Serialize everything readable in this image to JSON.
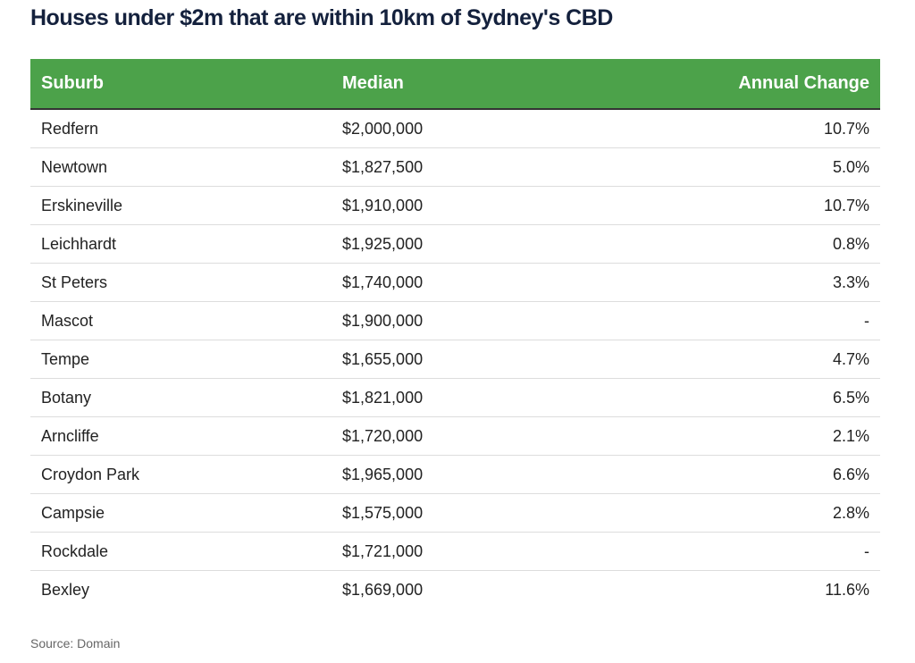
{
  "title": "Houses under $2m that are within 10km of Sydney's CBD",
  "table": {
    "header": [
      "Suburb",
      "Median",
      "Annual Change"
    ],
    "rows": [
      [
        "Redfern",
        "$2,000,000",
        "10.7%"
      ],
      [
        "Newtown",
        "$1,827,500",
        "5.0%"
      ],
      [
        "Erskineville",
        "$1,910,000",
        "10.7%"
      ],
      [
        "Leichhardt",
        "$1,925,000",
        "0.8%"
      ],
      [
        "St Peters",
        "$1,740,000",
        "3.3%"
      ],
      [
        "Mascot",
        "$1,900,000",
        "-"
      ],
      [
        "Tempe",
        "$1,655,000",
        "4.7%"
      ],
      [
        "Botany",
        "$1,821,000",
        "6.5%"
      ],
      [
        "Arncliffe",
        "$1,720,000",
        "2.1%"
      ],
      [
        "Croydon Park",
        "$1,965,000",
        "6.6%"
      ],
      [
        "Campsie",
        "$1,575,000",
        "2.8%"
      ],
      [
        "Rockdale",
        "$1,721,000",
        "-"
      ],
      [
        "Bexley",
        "$1,669,000",
        "11.6%"
      ]
    ]
  },
  "source": "Source: Domain"
}
